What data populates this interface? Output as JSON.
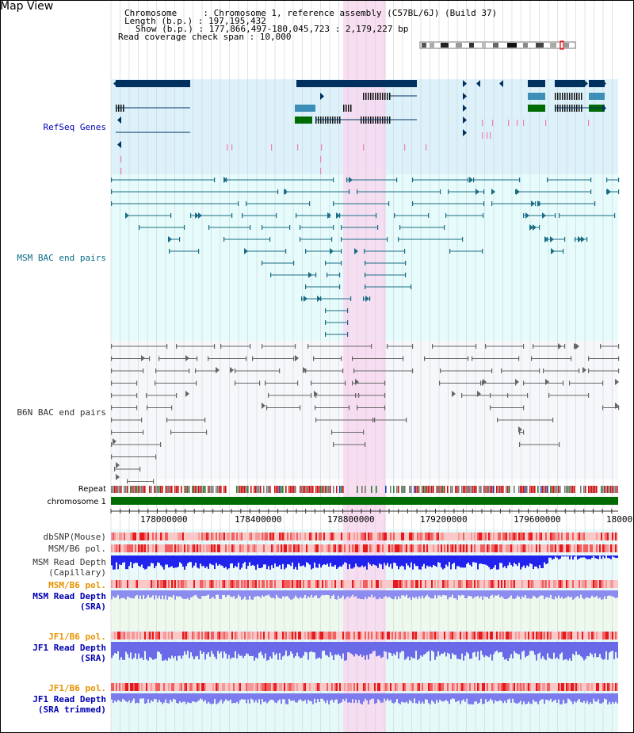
{
  "title": "Map View",
  "info": {
    "line1": "Chromosome     : Chromosome 1, reference assembly (C57BL/6J) (Build 37)",
    "line2": "Length (b.p.) : 197,195,432",
    "line3": "Show (b.p.) : 177,866,497-180,045,723 : 2,179,227 bp",
    "line4": "Read coverage check span : 10,000"
  },
  "tracks": {
    "refseq": "RefSeq Genes",
    "msm_bac": "MSM BAC end pairs",
    "b6n_bac": "B6N BAC end pairs",
    "repeat": "Repeat",
    "chromosome": "chromosome 1",
    "dbsnp": "dbSNP(Mouse)",
    "msm_pol1": "MSM/B6 pol.",
    "msm_depth_cap_1": "MSM Read Depth",
    "msm_depth_cap_2": "(Capillary)",
    "msm_pol2": "MSM/B6 pol.",
    "msm_depth_sra_1": "MSM Read Depth",
    "msm_depth_sra_2": "(SRA)",
    "jf1_pol1": "JF1/B6 pol.",
    "jf1_depth_sra_1": "JF1 Read Depth",
    "jf1_depth_sra_2": "(SRA)",
    "jf1_pol2": "JF1/B6 pol.",
    "jf1_depth_trim_1": "JF1 Read Depth",
    "jf1_depth_trim_2": "(SRA trimmed)"
  },
  "axis_ticks": [
    "178000000",
    "178400000",
    "178800000",
    "179200000",
    "179600000",
    "18000"
  ],
  "colors": {
    "refseq_bg": "#dcf1fa",
    "msm_bg": "#e6fbfb",
    "b6n_bg": "#f6f7fb",
    "highlight": "#f8d8f0",
    "gene_dark": "#00305e",
    "gene_mid": "#3e8fb7",
    "gene_green": "#006b00",
    "msm_pair": "#1a6d85",
    "b6n_pair": "#666666",
    "chrom_green": "#006b00",
    "label_blue": "#0000b3",
    "label_orange": "#e69300"
  }
}
